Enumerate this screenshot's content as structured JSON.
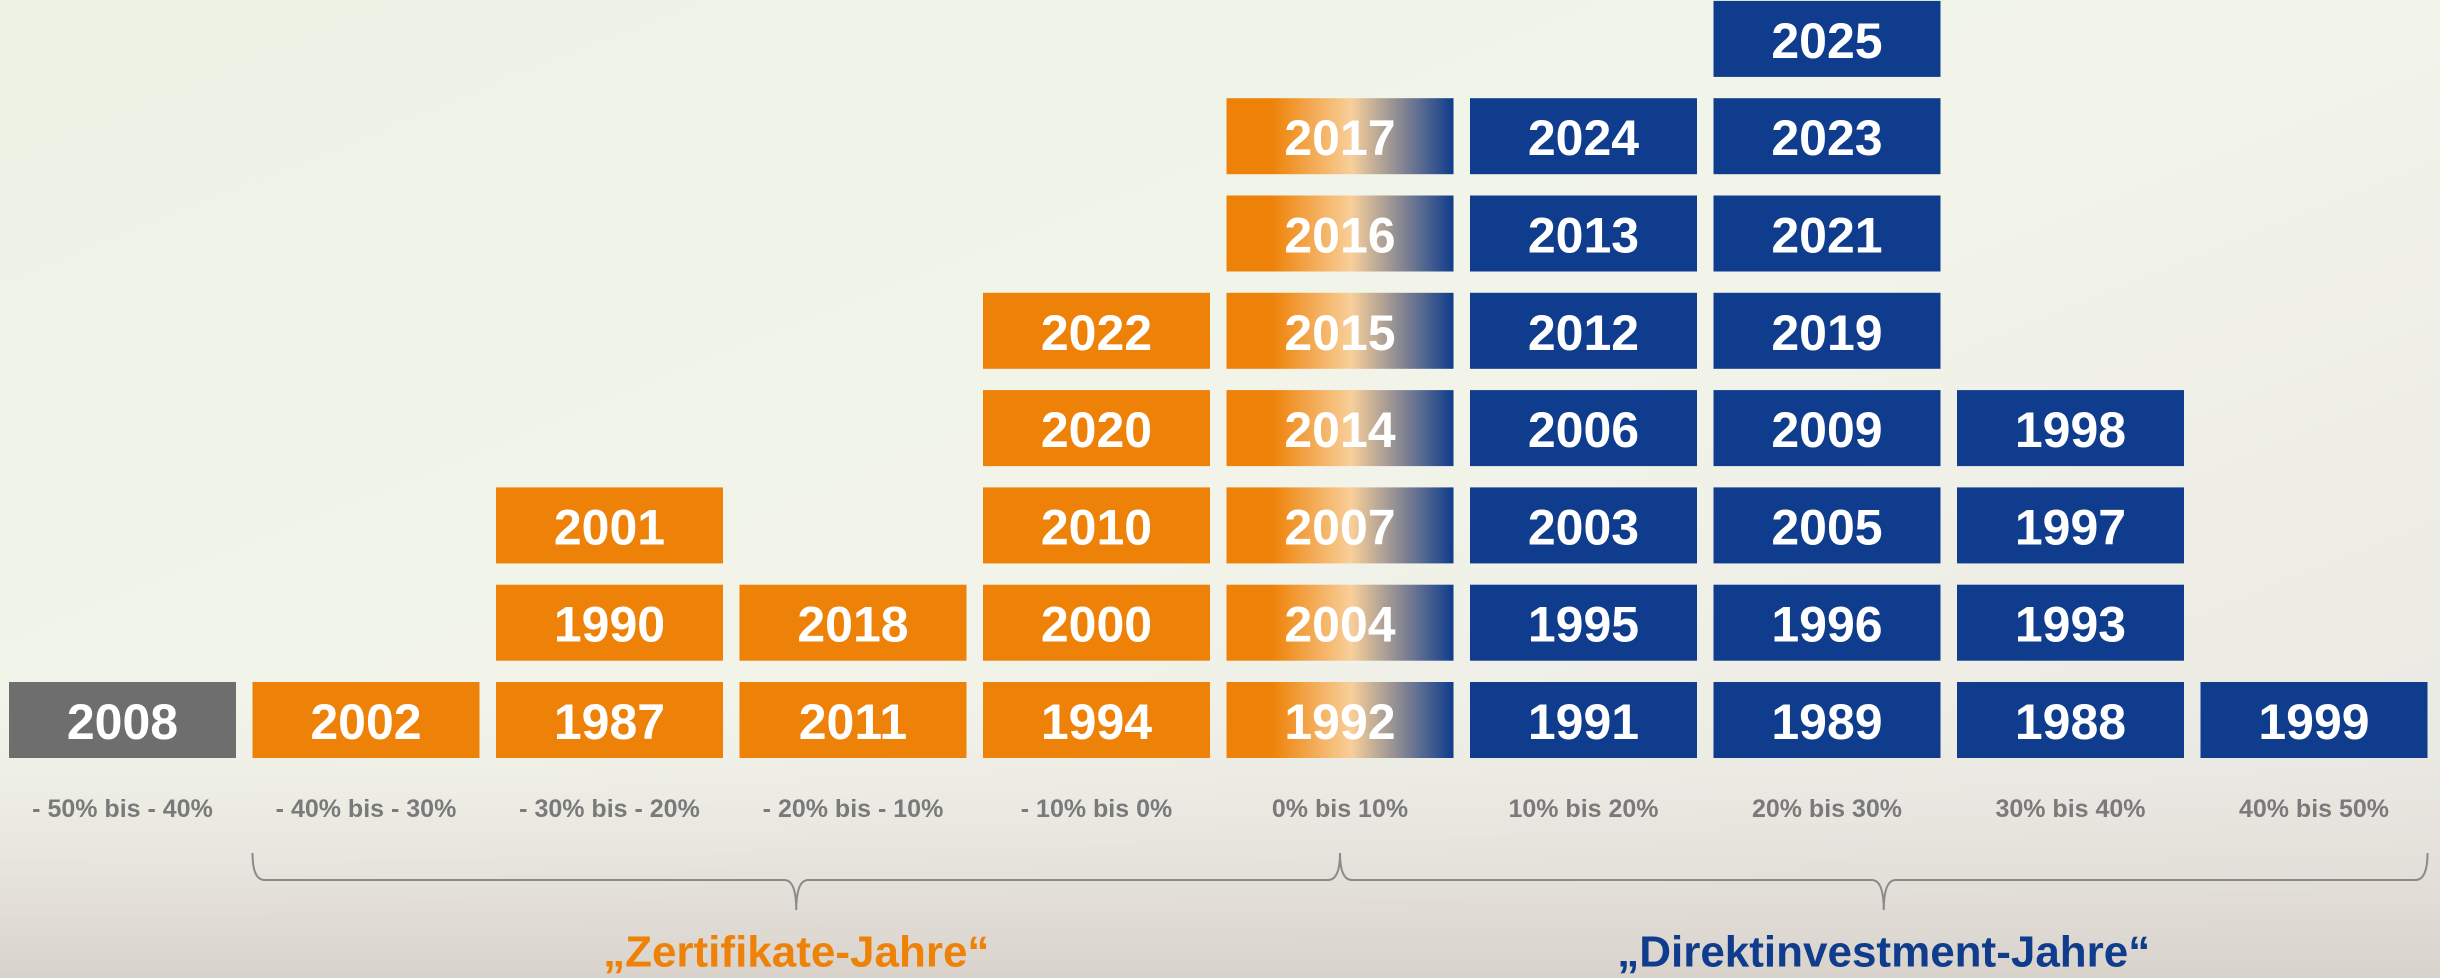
{
  "columns": [
    {
      "label": "- 50% bis - 40%",
      "years": [
        "2008"
      ],
      "color": "#6e6e6e"
    },
    {
      "label": "- 40% bis - 30%",
      "years": [
        "2002"
      ],
      "color": "#ee8208"
    },
    {
      "label": "- 30% bis - 20%",
      "years": [
        "1987",
        "1990",
        "2001"
      ],
      "color": "#ee8208"
    },
    {
      "label": "- 20% bis - 10%",
      "years": [
        "2011",
        "2018"
      ],
      "color": "#ee8208"
    },
    {
      "label": "- 10% bis 0%",
      "years": [
        "1994",
        "2000",
        "2010",
        "2020",
        "2022"
      ],
      "color": "#ee8208"
    },
    {
      "label": "0% bis 10%",
      "years": [
        "1992",
        "2004",
        "2007",
        "2014",
        "2015",
        "2016",
        "2017"
      ],
      "color": [
        "#ee8208",
        "#0f3c8c"
      ]
    },
    {
      "label": "10% bis 20%",
      "years": [
        "1991",
        "1995",
        "2003",
        "2006",
        "2012",
        "2013",
        "2024"
      ],
      "color": "#0f3c8c"
    },
    {
      "label": "20% bis 30%",
      "years": [
        "1989",
        "1996",
        "2005",
        "2009",
        "2019",
        "2021",
        "2023",
        "2025"
      ],
      "color": "#0f3c8c"
    },
    {
      "label": "30% bis 40%",
      "years": [
        "1988",
        "1993",
        "1997",
        "1998"
      ],
      "color": "#0f3c8c"
    },
    {
      "label": "40% bis 50%",
      "years": [
        "1999"
      ],
      "color": "#0f3c8c"
    }
  ],
  "groups": [
    {
      "label": "„Zertifikate-Jahre“",
      "color": "#ee8208"
    },
    {
      "label": "„Direktinvestment-Jahre“",
      "color": "#0f3c8c"
    }
  ]
}
